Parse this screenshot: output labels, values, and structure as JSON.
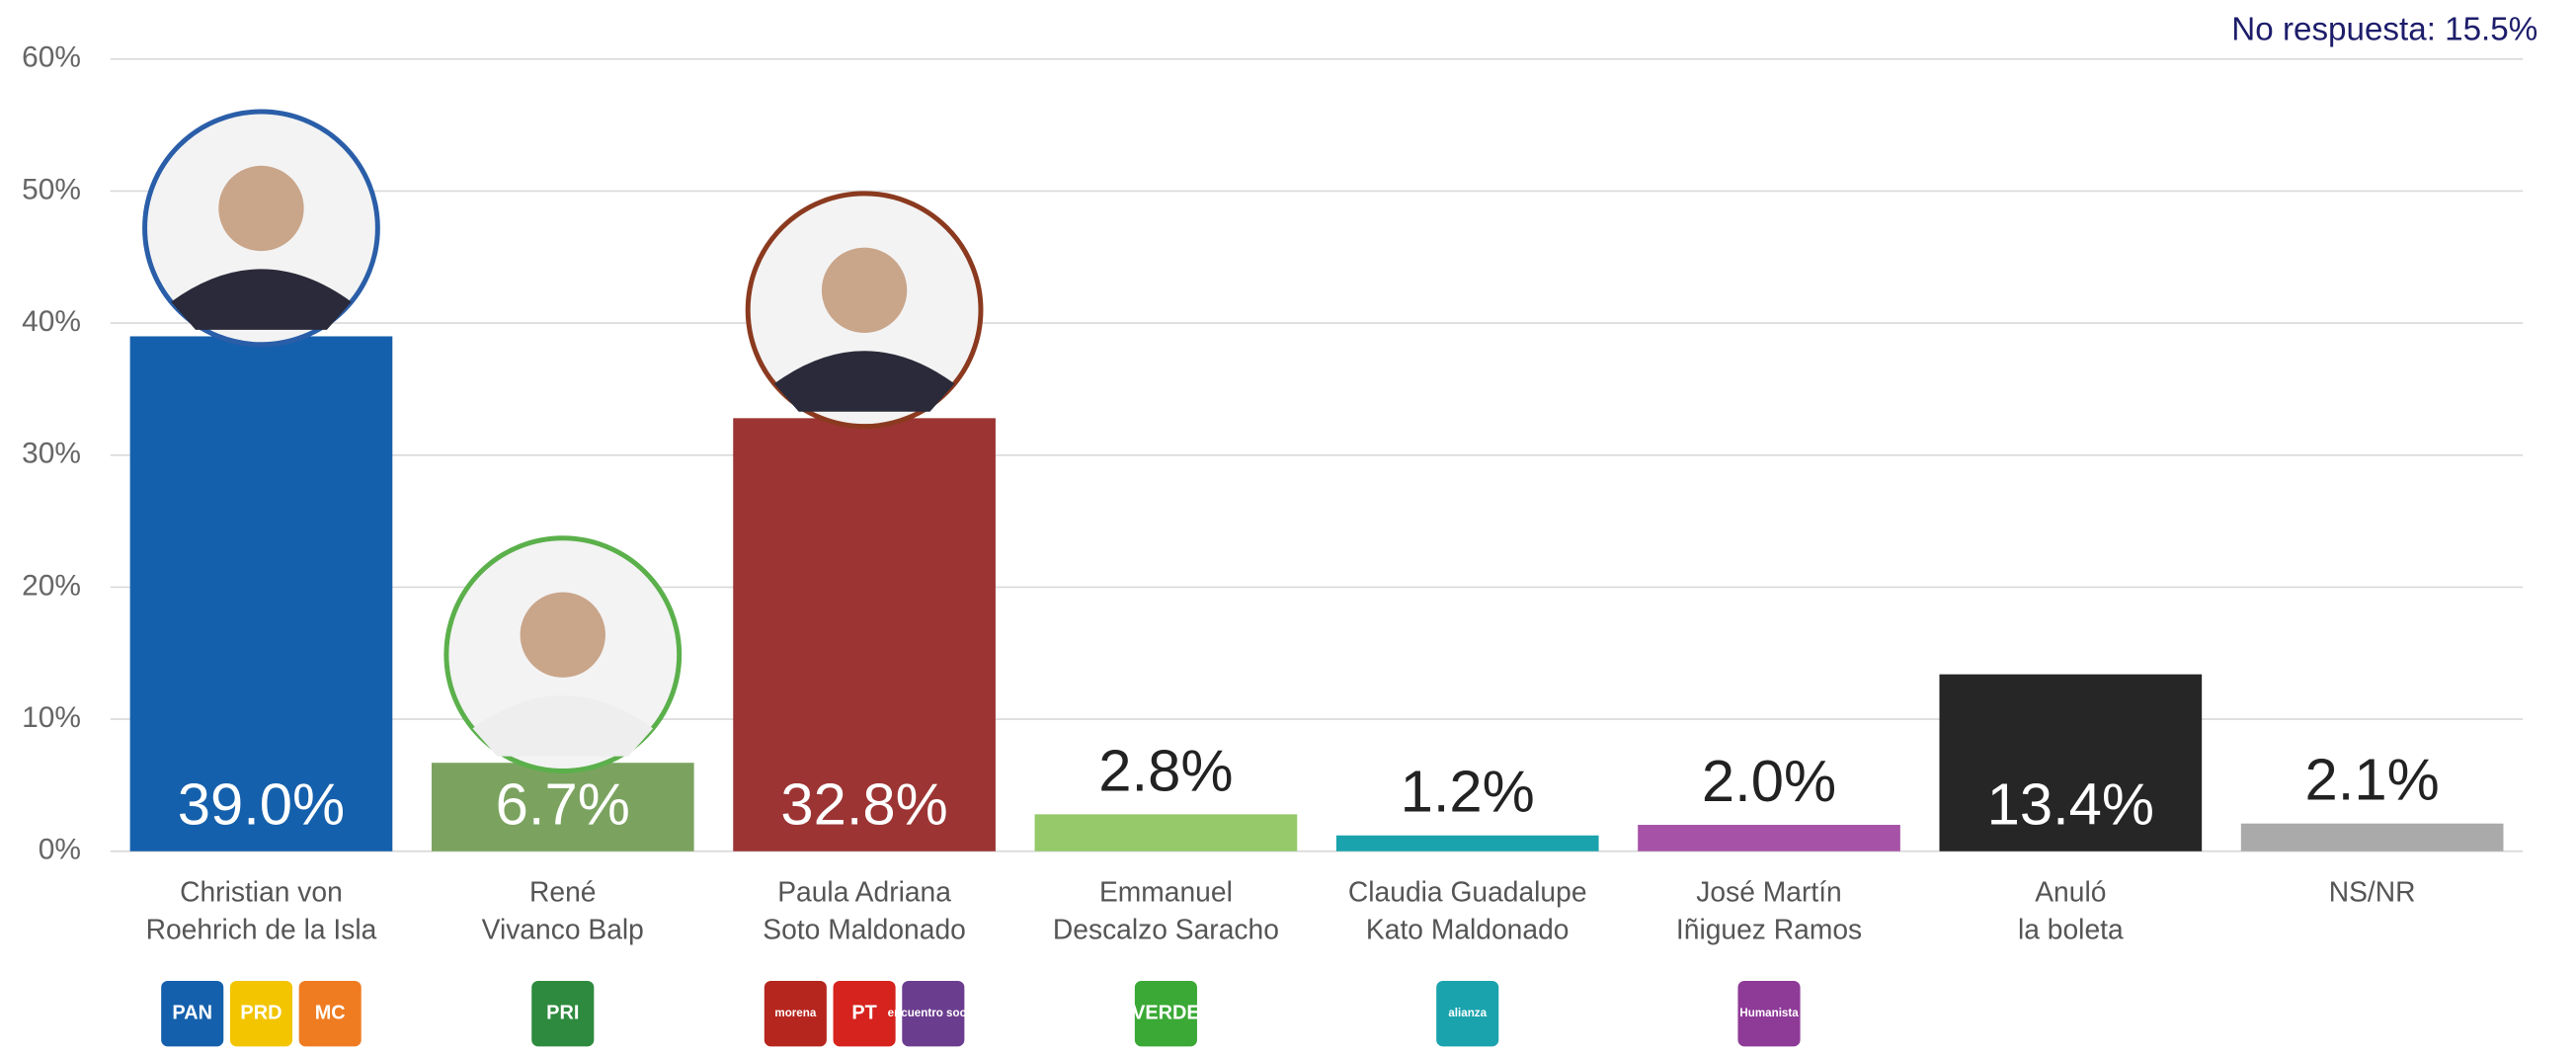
{
  "chart_data": {
    "type": "bar",
    "annotation": "No respuesta: 15.5%",
    "categories": [
      [
        "Christian von",
        "Roehrich de la Isla"
      ],
      [
        "René",
        "Vivanco Balp"
      ],
      [
        "Paula Adriana",
        "Soto Maldonado"
      ],
      [
        "Emmanuel",
        "Descalzo Saracho"
      ],
      [
        "Claudia Guadalupe",
        "Kato Maldonado"
      ],
      [
        "José Martín",
        "Iñiguez Ramos"
      ],
      [
        "Anuló",
        "la boleta"
      ],
      [
        "NS/NR"
      ]
    ],
    "values": [
      39.0,
      6.7,
      32.8,
      2.8,
      1.2,
      2.0,
      13.4,
      2.1
    ],
    "value_labels": [
      "39.0%",
      "6.7%",
      "32.8%",
      "2.8%",
      "1.2%",
      "2.0%",
      "13.4%",
      "2.1%"
    ],
    "colors": [
      "#1560ac",
      "#7ba35f",
      "#9c3434",
      "#95c96a",
      "#1aa3ad",
      "#a652a6",
      "#262626",
      "#aaaaaa"
    ],
    "photo_rings": [
      "#2a5ea8",
      "#5bb04b",
      "#8b3a1f",
      null,
      null,
      null,
      null,
      null
    ],
    "logos": [
      [
        {
          "text": "PAN",
          "color": "#1560ac"
        },
        {
          "text": "PRD",
          "color": "#f2c500"
        },
        {
          "text": "MC",
          "color": "#f07c22"
        }
      ],
      [
        {
          "text": "PRI",
          "color": "#2d8a3e"
        }
      ],
      [
        {
          "text": "morena",
          "color": "#b5261e"
        },
        {
          "text": "PT",
          "color": "#d6231d"
        },
        {
          "text": "encuentro social",
          "color": "#6b3d8f"
        }
      ],
      [
        {
          "text": "VERDE",
          "color": "#3aa935"
        }
      ],
      [
        {
          "text": "alianza",
          "color": "#1aa3ad"
        }
      ],
      [
        {
          "text": "Humanista",
          "color": "#8e3a97"
        }
      ],
      [],
      []
    ],
    "ylim": [
      0,
      60
    ],
    "yticks": [
      {
        "value": 0,
        "label": "0%"
      },
      {
        "value": 10,
        "label": "10%"
      },
      {
        "value": 20,
        "label": "20%"
      },
      {
        "value": 30,
        "label": "30%"
      },
      {
        "value": 40,
        "label": "40%"
      },
      {
        "value": 50,
        "label": "50%"
      },
      {
        "value": 60,
        "label": "60%"
      }
    ],
    "grid": true
  }
}
